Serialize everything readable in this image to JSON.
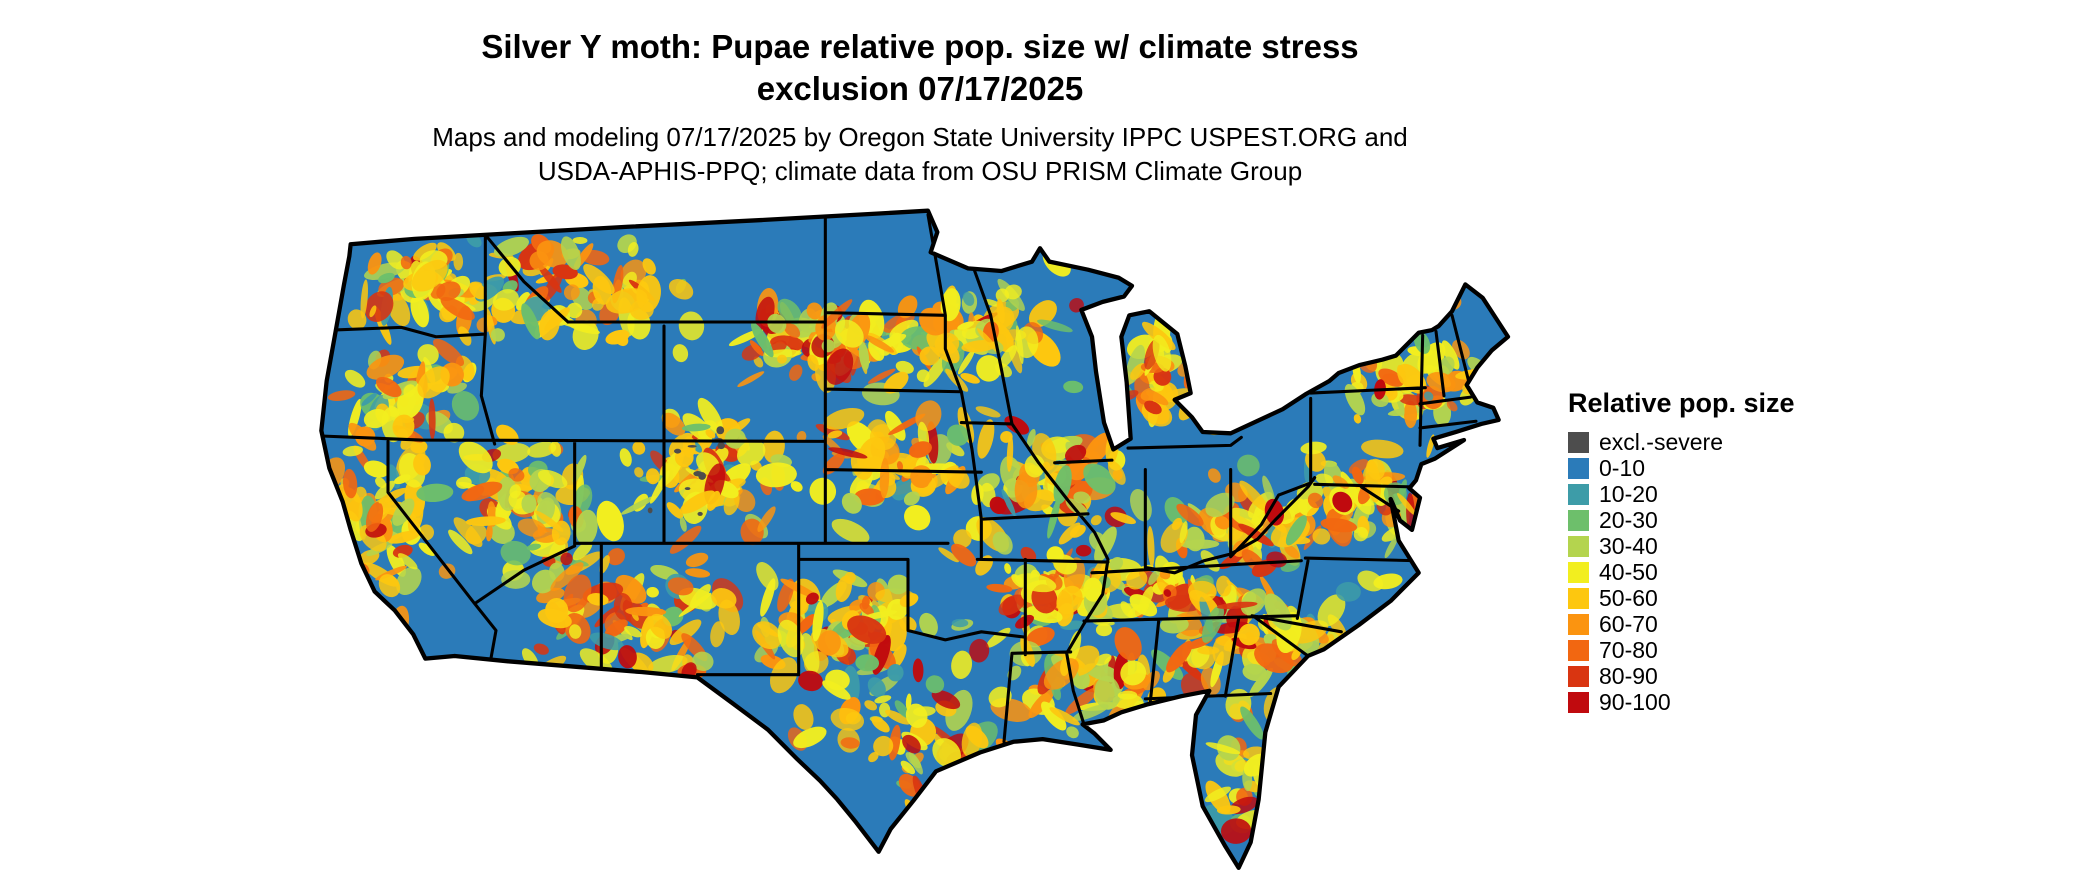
{
  "title": {
    "line1": "Silver Y moth: Pupae relative pop. size w/ climate stress",
    "line2": "exclusion 07/17/2025"
  },
  "subtitle": {
    "line1": "Maps and modeling 07/17/2025 by Oregon State University IPPC USPEST.ORG and",
    "line2": "USDA-APHIS-PPQ; climate data from OSU PRISM Climate Group"
  },
  "legend": {
    "title": "Relative pop. size",
    "items": [
      {
        "label": "excl.-severe",
        "color": "#4d4d4d"
      },
      {
        "label": "0-10",
        "color": "#2b7bb9"
      },
      {
        "label": "10-20",
        "color": "#3d9ca8"
      },
      {
        "label": "20-30",
        "color": "#6dbf6b"
      },
      {
        "label": "30-40",
        "color": "#b4d44e"
      },
      {
        "label": "40-50",
        "color": "#f2ee1f"
      },
      {
        "label": "50-60",
        "color": "#fdc70f"
      },
      {
        "label": "60-70",
        "color": "#fb9410"
      },
      {
        "label": "70-80",
        "color": "#f26711"
      },
      {
        "label": "80-90",
        "color": "#d93511"
      },
      {
        "label": "90-100",
        "color": "#c00a0e"
      }
    ]
  },
  "map": {
    "region": "Contiguous United States",
    "base_color": "#2b7bb9",
    "border_color": "#000000",
    "background_color": "#ffffff"
  }
}
